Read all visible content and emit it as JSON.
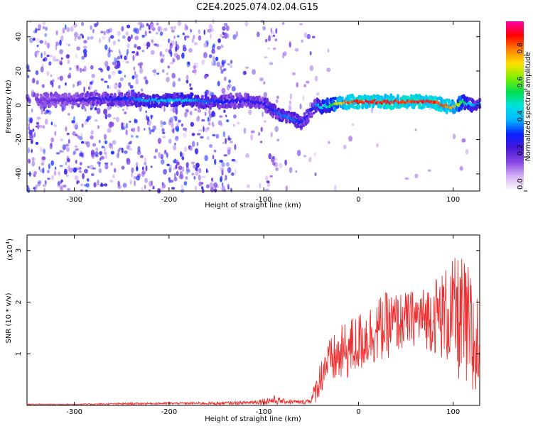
{
  "title": "C2E4.2025.074.02.04.G15",
  "chart_data": [
    {
      "type": "heatmap",
      "xlabel": "Height of straight line (km)",
      "ylabel": "Frequency (Hz)",
      "xlim": [
        -350,
        128
      ],
      "ylim": [
        -50,
        49
      ],
      "xticks": [
        -300,
        -200,
        -100,
        0,
        100
      ],
      "yticks": [
        -40,
        -20,
        0,
        20,
        40
      ],
      "colorbar": {
        "label": "Normalized spectral amplitude",
        "range": [
          0,
          1
        ],
        "ticks": [
          "0.0",
          "0.2",
          "0.4",
          "0.6",
          "0.8"
        ],
        "colors": [
          "#ffffff",
          "#d8b6f5",
          "#8c4be6",
          "#4a18d8",
          "#0a20ff",
          "#00b4ff",
          "#00e0e0",
          "#00e050",
          "#80f000",
          "#ffe000",
          "#ff8000",
          "#ff0000",
          "#ff00aa"
        ]
      },
      "ridge": {
        "height_km": [
          -340,
          -300,
          -250,
          -220,
          -180,
          -150,
          -120,
          -100,
          -90,
          -80,
          -70,
          -60,
          -55,
          -50,
          -45,
          -40,
          -30,
          -20,
          -10,
          0,
          20,
          50,
          80,
          90,
          100,
          110,
          120,
          128
        ],
        "freq_hz": [
          3,
          3,
          4,
          3,
          3,
          2,
          3,
          1,
          -3,
          -6,
          -8,
          -10,
          -7,
          -3,
          0,
          -1,
          0,
          1,
          2,
          2,
          2,
          2,
          2,
          0,
          -1,
          2,
          0,
          1
        ],
        "amplitude": [
          0.2,
          0.25,
          0.35,
          0.45,
          0.45,
          0.35,
          0.3,
          0.3,
          0.35,
          0.4,
          0.4,
          0.35,
          0.3,
          0.3,
          0.4,
          0.5,
          0.6,
          0.8,
          0.9,
          0.95,
          0.95,
          0.95,
          0.95,
          0.9,
          0.85,
          0.6,
          0.45,
          0.4
        ]
      }
    },
    {
      "type": "line",
      "xlabel": "Height of straight line (km)",
      "ylabel": "SNR (10 * v/v)",
      "ylabel_scale": "(x10",
      "ylabel_scale_exp": "4",
      "ylabel_scale_close": ")",
      "xlim": [
        -350,
        128
      ],
      "ylim": [
        0,
        3.3
      ],
      "xticks": [
        -300,
        -200,
        -100,
        0,
        100
      ],
      "yticks": [
        1,
        2,
        3
      ],
      "series": [
        {
          "color": "#ee2e2e",
          "x": [
            -350,
            -300,
            -250,
            -200,
            -150,
            -120,
            -100,
            -90,
            -80,
            -60,
            -50,
            -45,
            -40,
            -35,
            -30,
            -20,
            -10,
            0,
            10,
            20,
            30,
            40,
            50,
            60,
            70,
            80,
            90,
            100,
            110,
            120,
            128
          ],
          "y": [
            0.02,
            0.02,
            0.03,
            0.04,
            0.04,
            0.05,
            0.08,
            0.1,
            0.08,
            0.06,
            0.1,
            0.3,
            0.55,
            0.8,
            0.85,
            0.95,
            1.1,
            1.2,
            1.35,
            1.45,
            1.55,
            1.6,
            1.65,
            1.7,
            1.7,
            1.75,
            1.75,
            1.75,
            1.6,
            1.2,
            1.1
          ],
          "spread": [
            0.01,
            0.01,
            0.02,
            0.02,
            0.03,
            0.03,
            0.06,
            0.1,
            0.05,
            0.04,
            0.06,
            0.25,
            0.35,
            0.4,
            0.45,
            0.55,
            0.6,
            0.6,
            0.6,
            0.65,
            0.65,
            0.6,
            0.55,
            0.55,
            0.6,
            0.75,
            0.9,
            1.1,
            1.3,
            1.4,
            1.0
          ]
        }
      ]
    }
  ]
}
